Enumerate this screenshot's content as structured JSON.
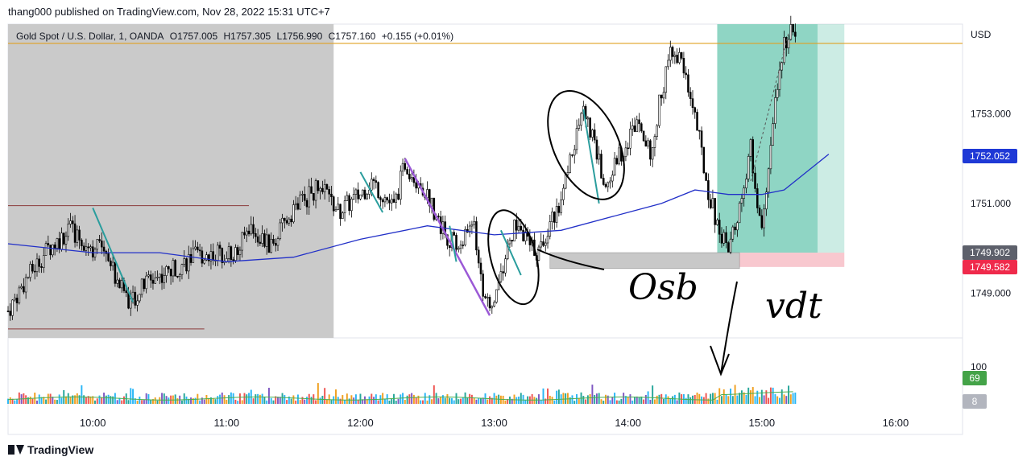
{
  "header": {
    "published": "thang000 published on TradingView.com, Nov 28, 2022 15:31 UTC+7"
  },
  "legend": {
    "symbol": "Gold Spot / U.S. Dollar, 1, OANDA",
    "open": "O1757.005",
    "high": "H1757.305",
    "low": "L1756.990",
    "close": "C1757.160",
    "change": "+0.155 (+0.01%)"
  },
  "footer": {
    "brand": "TradingView"
  },
  "colors": {
    "up_candle": "#ffffff",
    "down_candle": "#000000",
    "ma_line": "#2230c8",
    "orange_line": "#e0a020",
    "box_gray": "#c7c7c7",
    "long_target": "#8fd5c4",
    "long_stop": "#f8c8cf",
    "label_blue": "#1f39d6",
    "label_gray": "#5d606b",
    "label_red": "#ef2a4b",
    "label_green": "#44a348",
    "label_lightgray": "#b2b5be",
    "teal_draw": "#2a9d9d",
    "purple_draw": "#9b59d6"
  },
  "chart_data": {
    "type": "candlestick",
    "price_axis": {
      "unit": "USD",
      "ticks": [
        1753.0,
        1751.0,
        1749.0
      ],
      "tick_labels": [
        "1753.000",
        "1751.000",
        "1749.000"
      ],
      "range": [
        1748.0,
        1755.0
      ]
    },
    "time_axis": {
      "tick_labels": [
        "10:00",
        "11:00",
        "12:00",
        "13:00",
        "14:00",
        "15:00",
        "16:00"
      ],
      "range": [
        "09:22",
        "16:30"
      ]
    },
    "price_labels": [
      {
        "value": 1752.052,
        "text": "1752.052",
        "color": "#1f39d6"
      },
      {
        "value": 1749.902,
        "text": "1749.902",
        "color": "#5d606b"
      },
      {
        "value": 1749.582,
        "text": "1749.582",
        "color": "#ef2a4b"
      }
    ],
    "horizontal_line": {
      "value": 1754.57
    },
    "volume_axis": {
      "tick_labels": [
        "100"
      ],
      "range": [
        0,
        130
      ]
    },
    "volume_labels": [
      {
        "text": "69",
        "color": "#44a348"
      },
      {
        "text": "8",
        "color": "#b2b5be"
      }
    ],
    "close_path": [
      [
        "09:22",
        1748.6
      ],
      [
        "09:30",
        1749.3
      ],
      [
        "09:40",
        1750.0
      ],
      [
        "09:50",
        1750.4
      ],
      [
        "10:00",
        1750.0
      ],
      [
        "10:05",
        1750.1
      ],
      [
        "10:10",
        1749.4
      ],
      [
        "10:17",
        1748.8
      ],
      [
        "10:25",
        1749.3
      ],
      [
        "10:35",
        1749.5
      ],
      [
        "10:45",
        1749.8
      ],
      [
        "10:55",
        1749.9
      ],
      [
        "11:05",
        1749.9
      ],
      [
        "11:10",
        1750.5
      ],
      [
        "11:20",
        1750.0
      ],
      [
        "11:30",
        1750.9
      ],
      [
        "11:40",
        1751.3
      ],
      [
        "11:45",
        1751.2
      ],
      [
        "11:50",
        1750.8
      ],
      [
        "12:00",
        1751.2
      ],
      [
        "12:05",
        1751.5
      ],
      [
        "12:15",
        1750.9
      ],
      [
        "12:20",
        1751.9
      ],
      [
        "12:30",
        1751.2
      ],
      [
        "12:35",
        1750.6
      ],
      [
        "12:40",
        1750.2
      ],
      [
        "12:45",
        1750.0
      ],
      [
        "12:50",
        1750.7
      ],
      [
        "12:55",
        1749.1
      ],
      [
        "12:58",
        1748.5
      ],
      [
        "13:05",
        1749.8
      ],
      [
        "13:10",
        1750.6
      ],
      [
        "13:15",
        1750.1
      ],
      [
        "13:20",
        1749.9
      ],
      [
        "13:25",
        1750.6
      ],
      [
        "13:30",
        1751.0
      ],
      [
        "13:35",
        1752.2
      ],
      [
        "13:40",
        1753.1
      ],
      [
        "13:45",
        1752.3
      ],
      [
        "13:50",
        1751.3
      ],
      [
        "13:55",
        1752.0
      ],
      [
        "14:00",
        1752.4
      ],
      [
        "14:05",
        1753.0
      ],
      [
        "14:10",
        1752.0
      ],
      [
        "14:15",
        1753.5
      ],
      [
        "14:20",
        1754.5
      ],
      [
        "14:25",
        1754.0
      ],
      [
        "14:30",
        1753.0
      ],
      [
        "14:35",
        1751.5
      ],
      [
        "14:40",
        1750.5
      ],
      [
        "14:45",
        1749.9
      ],
      [
        "14:50",
        1750.9
      ],
      [
        "14:55",
        1752.2
      ],
      [
        "15:00",
        1750.3
      ],
      [
        "15:05",
        1752.8
      ],
      [
        "15:10",
        1754.6
      ],
      [
        "15:15",
        1754.9
      ]
    ],
    "ma_path": [
      [
        "09:22",
        1750.1
      ],
      [
        "10:00",
        1749.9
      ],
      [
        "10:30",
        1749.9
      ],
      [
        "11:00",
        1749.7
      ],
      [
        "11:30",
        1749.8
      ],
      [
        "12:00",
        1750.2
      ],
      [
        "12:30",
        1750.5
      ],
      [
        "13:00",
        1750.3
      ],
      [
        "13:30",
        1750.4
      ],
      [
        "14:00",
        1750.8
      ],
      [
        "14:15",
        1751.0
      ],
      [
        "14:30",
        1751.3
      ],
      [
        "14:45",
        1751.2
      ],
      [
        "15:00",
        1751.2
      ],
      [
        "15:10",
        1751.3
      ],
      [
        "15:20",
        1751.7
      ],
      [
        "15:30",
        1752.1
      ]
    ],
    "annotations": [
      {
        "text": "Osb"
      },
      {
        "text": "vdt"
      }
    ]
  }
}
